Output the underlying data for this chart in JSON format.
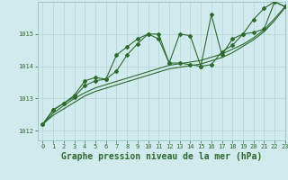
{
  "background_color": "#d0eaed",
  "grid_color": "#b0d4d8",
  "line_color": "#2d6a2d",
  "title": "Graphe pression niveau de la mer (hPa)",
  "xlim": [
    -0.5,
    23
  ],
  "ylim": [
    1011.7,
    1016.0
  ],
  "yticks": [
    1012,
    1013,
    1014,
    1015
  ],
  "xticks": [
    0,
    1,
    2,
    3,
    4,
    5,
    6,
    7,
    8,
    9,
    10,
    11,
    12,
    13,
    14,
    15,
    16,
    17,
    18,
    19,
    20,
    21,
    22,
    23
  ],
  "series_wavy_x": [
    0,
    1,
    2,
    3,
    4,
    5,
    6,
    7,
    8,
    9,
    10,
    11,
    12,
    13,
    14,
    15,
    16,
    17,
    18,
    19,
    20,
    21,
    22,
    23
  ],
  "series_wavy_y": [
    1012.2,
    1012.65,
    1012.85,
    1013.1,
    1013.55,
    1013.65,
    1013.6,
    1014.35,
    1014.6,
    1014.85,
    1015.0,
    1014.85,
    1014.1,
    1015.0,
    1014.95,
    1014.0,
    1015.6,
    1014.35,
    1014.85,
    1015.0,
    1015.05,
    1015.15,
    1016.0,
    1015.85
  ],
  "series_mid_x": [
    0,
    1,
    2,
    3,
    4,
    5,
    6,
    7,
    8,
    9,
    10,
    11,
    12,
    13,
    14,
    15,
    16,
    17,
    18,
    19,
    20,
    21,
    22,
    23
  ],
  "series_mid_y": [
    1012.2,
    1012.65,
    1012.85,
    1013.05,
    1013.4,
    1013.55,
    1013.6,
    1013.85,
    1014.35,
    1014.7,
    1015.0,
    1015.0,
    1014.1,
    1014.1,
    1014.05,
    1014.0,
    1014.05,
    1014.45,
    1014.65,
    1015.0,
    1015.45,
    1015.8,
    1016.0,
    1015.85
  ],
  "series_smooth1_x": [
    0,
    1,
    2,
    3,
    4,
    5,
    6,
    7,
    8,
    9,
    10,
    11,
    12,
    13,
    14,
    15,
    16,
    17,
    18,
    19,
    20,
    21,
    22,
    23
  ],
  "series_smooth1_y": [
    1012.2,
    1012.55,
    1012.78,
    1013.0,
    1013.18,
    1013.33,
    1013.43,
    1013.53,
    1013.63,
    1013.73,
    1013.83,
    1013.93,
    1014.03,
    1014.08,
    1014.13,
    1014.18,
    1014.28,
    1014.38,
    1014.53,
    1014.68,
    1014.88,
    1015.13,
    1015.48,
    1015.85
  ],
  "series_smooth2_x": [
    0,
    1,
    2,
    3,
    4,
    5,
    6,
    7,
    8,
    9,
    10,
    11,
    12,
    13,
    14,
    15,
    16,
    17,
    18,
    19,
    20,
    21,
    22,
    23
  ],
  "series_smooth2_y": [
    1012.2,
    1012.48,
    1012.68,
    1012.88,
    1013.08,
    1013.22,
    1013.32,
    1013.42,
    1013.52,
    1013.62,
    1013.72,
    1013.82,
    1013.92,
    1013.97,
    1014.02,
    1014.07,
    1014.17,
    1014.27,
    1014.42,
    1014.62,
    1014.82,
    1015.07,
    1015.42,
    1015.82
  ],
  "marker": "D",
  "markersize": 2.0,
  "linewidth": 0.8,
  "title_fontsize": 7,
  "tick_fontsize": 5
}
